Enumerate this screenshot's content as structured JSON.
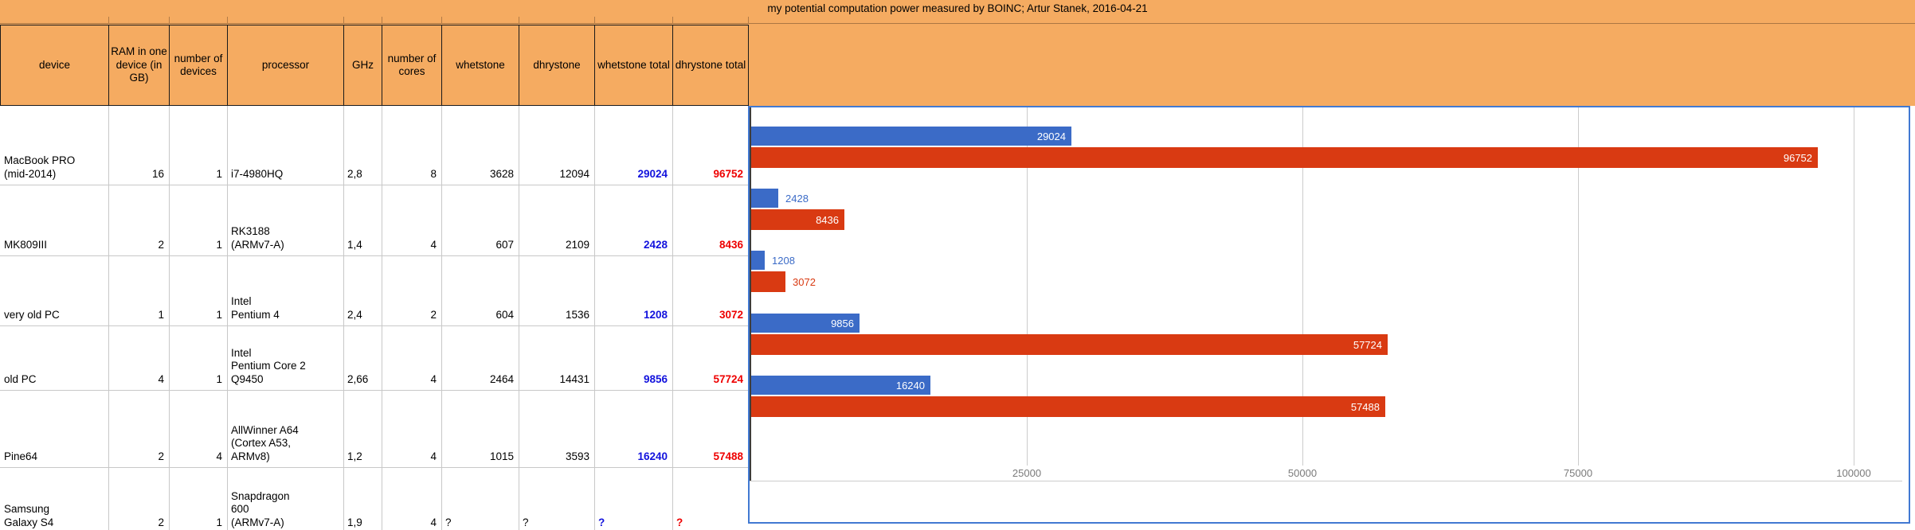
{
  "title": "my potential computation power measured by BOINC; Artur Stanek, 2016-04-21",
  "colors": {
    "header_bg": "#f5ab61",
    "series_blue": "#3b6bc7",
    "series_red": "#d93a12",
    "whetstone_total_text": "#1212dd",
    "dhrystone_total_text": "#ee0000",
    "chart_border": "#4179d2",
    "chart_gridline": "#cccccc",
    "axis_line_dark": "#3c3c3c",
    "axis_tick_text": "#7a7a7a",
    "table_gridline": "#c8c8c8"
  },
  "table": {
    "columns": {
      "device": "device",
      "ram": "RAM in one device (in GB)",
      "devices": "number of devices",
      "processor": "processor",
      "ghz": "GHz",
      "cores": "number of cores",
      "whetstone": "whetstone",
      "dhrystone": "dhrystone",
      "whetstone_total": "whetstone total",
      "dhrystone_total": "dhrystone total"
    },
    "rows": [
      {
        "device": "MacBook PRO\n(mid-2014)",
        "ram": "16",
        "devices": "1",
        "processor": "i7-4980HQ",
        "ghz": "2,8",
        "cores": "8",
        "whetstone": "3628",
        "dhrystone": "12094",
        "whetstone_total": "29024",
        "dhrystone_total": "96752"
      },
      {
        "device": "MK809III",
        "ram": "2",
        "devices": "1",
        "processor": "RK3188\n(ARMv7-A)",
        "ghz": "1,4",
        "cores": "4",
        "whetstone": "607",
        "dhrystone": "2109",
        "whetstone_total": "2428",
        "dhrystone_total": "8436"
      },
      {
        "device": "very old PC",
        "ram": "1",
        "devices": "1",
        "processor": "Intel\nPentium 4",
        "ghz": "2,4",
        "cores": "2",
        "whetstone": "604",
        "dhrystone": "1536",
        "whetstone_total": "1208",
        "dhrystone_total": "3072"
      },
      {
        "device": "old PC",
        "ram": "4",
        "devices": "1",
        "processor": "Intel\nPentium Core 2\nQ9450",
        "ghz": "2,66",
        "cores": "4",
        "whetstone": "2464",
        "dhrystone": "14431",
        "whetstone_total": "9856",
        "dhrystone_total": "57724"
      },
      {
        "device": "Pine64",
        "ram": "2",
        "devices": "4",
        "processor": "AllWinner A64\n(Cortex A53,\nARMv8)",
        "ghz": "1,2",
        "cores": "4",
        "whetstone": "1015",
        "dhrystone": "3593",
        "whetstone_total": "16240",
        "dhrystone_total": "57488"
      },
      {
        "device": "Samsung\nGalaxy S4",
        "ram": "2",
        "devices": "1",
        "processor": "Snapdragon\n600\n(ARMv7-A)",
        "ghz": "1,9",
        "cores": "4",
        "whetstone": "?",
        "dhrystone": "?",
        "whetstone_total": "?",
        "dhrystone_total": "?"
      }
    ]
  },
  "chart_data": {
    "type": "bar",
    "orientation": "horizontal",
    "title": "",
    "categories": [
      "MacBook PRO (mid-2014)",
      "MK809III",
      "very old PC",
      "old PC",
      "Pine64",
      "Samsung Galaxy S4"
    ],
    "series": [
      {
        "name": "whetstone total",
        "color": "#3b6bc7",
        "values": [
          29024,
          2428,
          1208,
          9856,
          16240,
          null
        ]
      },
      {
        "name": "dhrystone total",
        "color": "#d93a12",
        "values": [
          96752,
          8436,
          3072,
          57724,
          57488,
          null
        ]
      }
    ],
    "x_ticks": [
      25000,
      50000,
      75000,
      100000
    ],
    "xlim": [
      0,
      105000
    ],
    "grid": true,
    "legend": "none",
    "data_labels": "shown at bar end; white inside bar when it fits, series-colored outside otherwise"
  }
}
